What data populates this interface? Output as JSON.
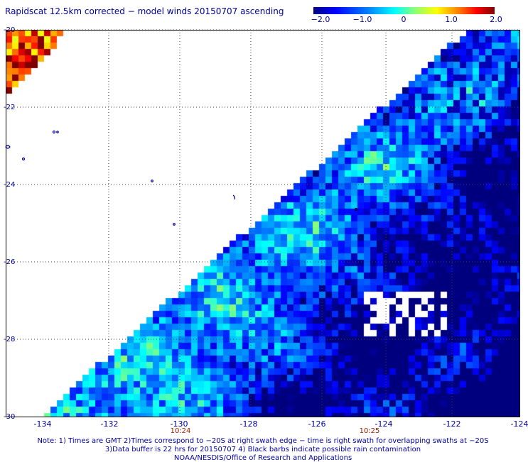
{
  "title": "Rapidscat 12.5km corrected − model winds 20150707 ascending",
  "colorbar": {
    "ticks": [
      "−2.0",
      "−1.0",
      "0",
      "1.0",
      "2.0"
    ],
    "range": [
      -2.0,
      2.0
    ]
  },
  "axes": {
    "lat_labels": [
      "-20",
      "-22",
      "-24",
      "-26",
      "-28",
      "-30"
    ],
    "lon_labels": [
      "-134",
      "-132",
      "-130",
      "-128",
      "-126",
      "-124",
      "-122",
      "-124"
    ],
    "time_labels": [
      "10:24",
      "10:25"
    ]
  },
  "notes": {
    "line1": "Note: 1) Times are GMT 2)Times correspond to −20S at right swath edge − time is right swath for overlapping swaths at −20S",
    "line2": "3)Data buffer is 22 hrs for 20150707 4) Black barbs indicate possible rain contamination",
    "line3": "NOAA/NESDIS/Office of Research and Applications"
  },
  "colors": {
    "text": "#0000a0",
    "time": "#a02000",
    "land": "#0000a0"
  }
}
